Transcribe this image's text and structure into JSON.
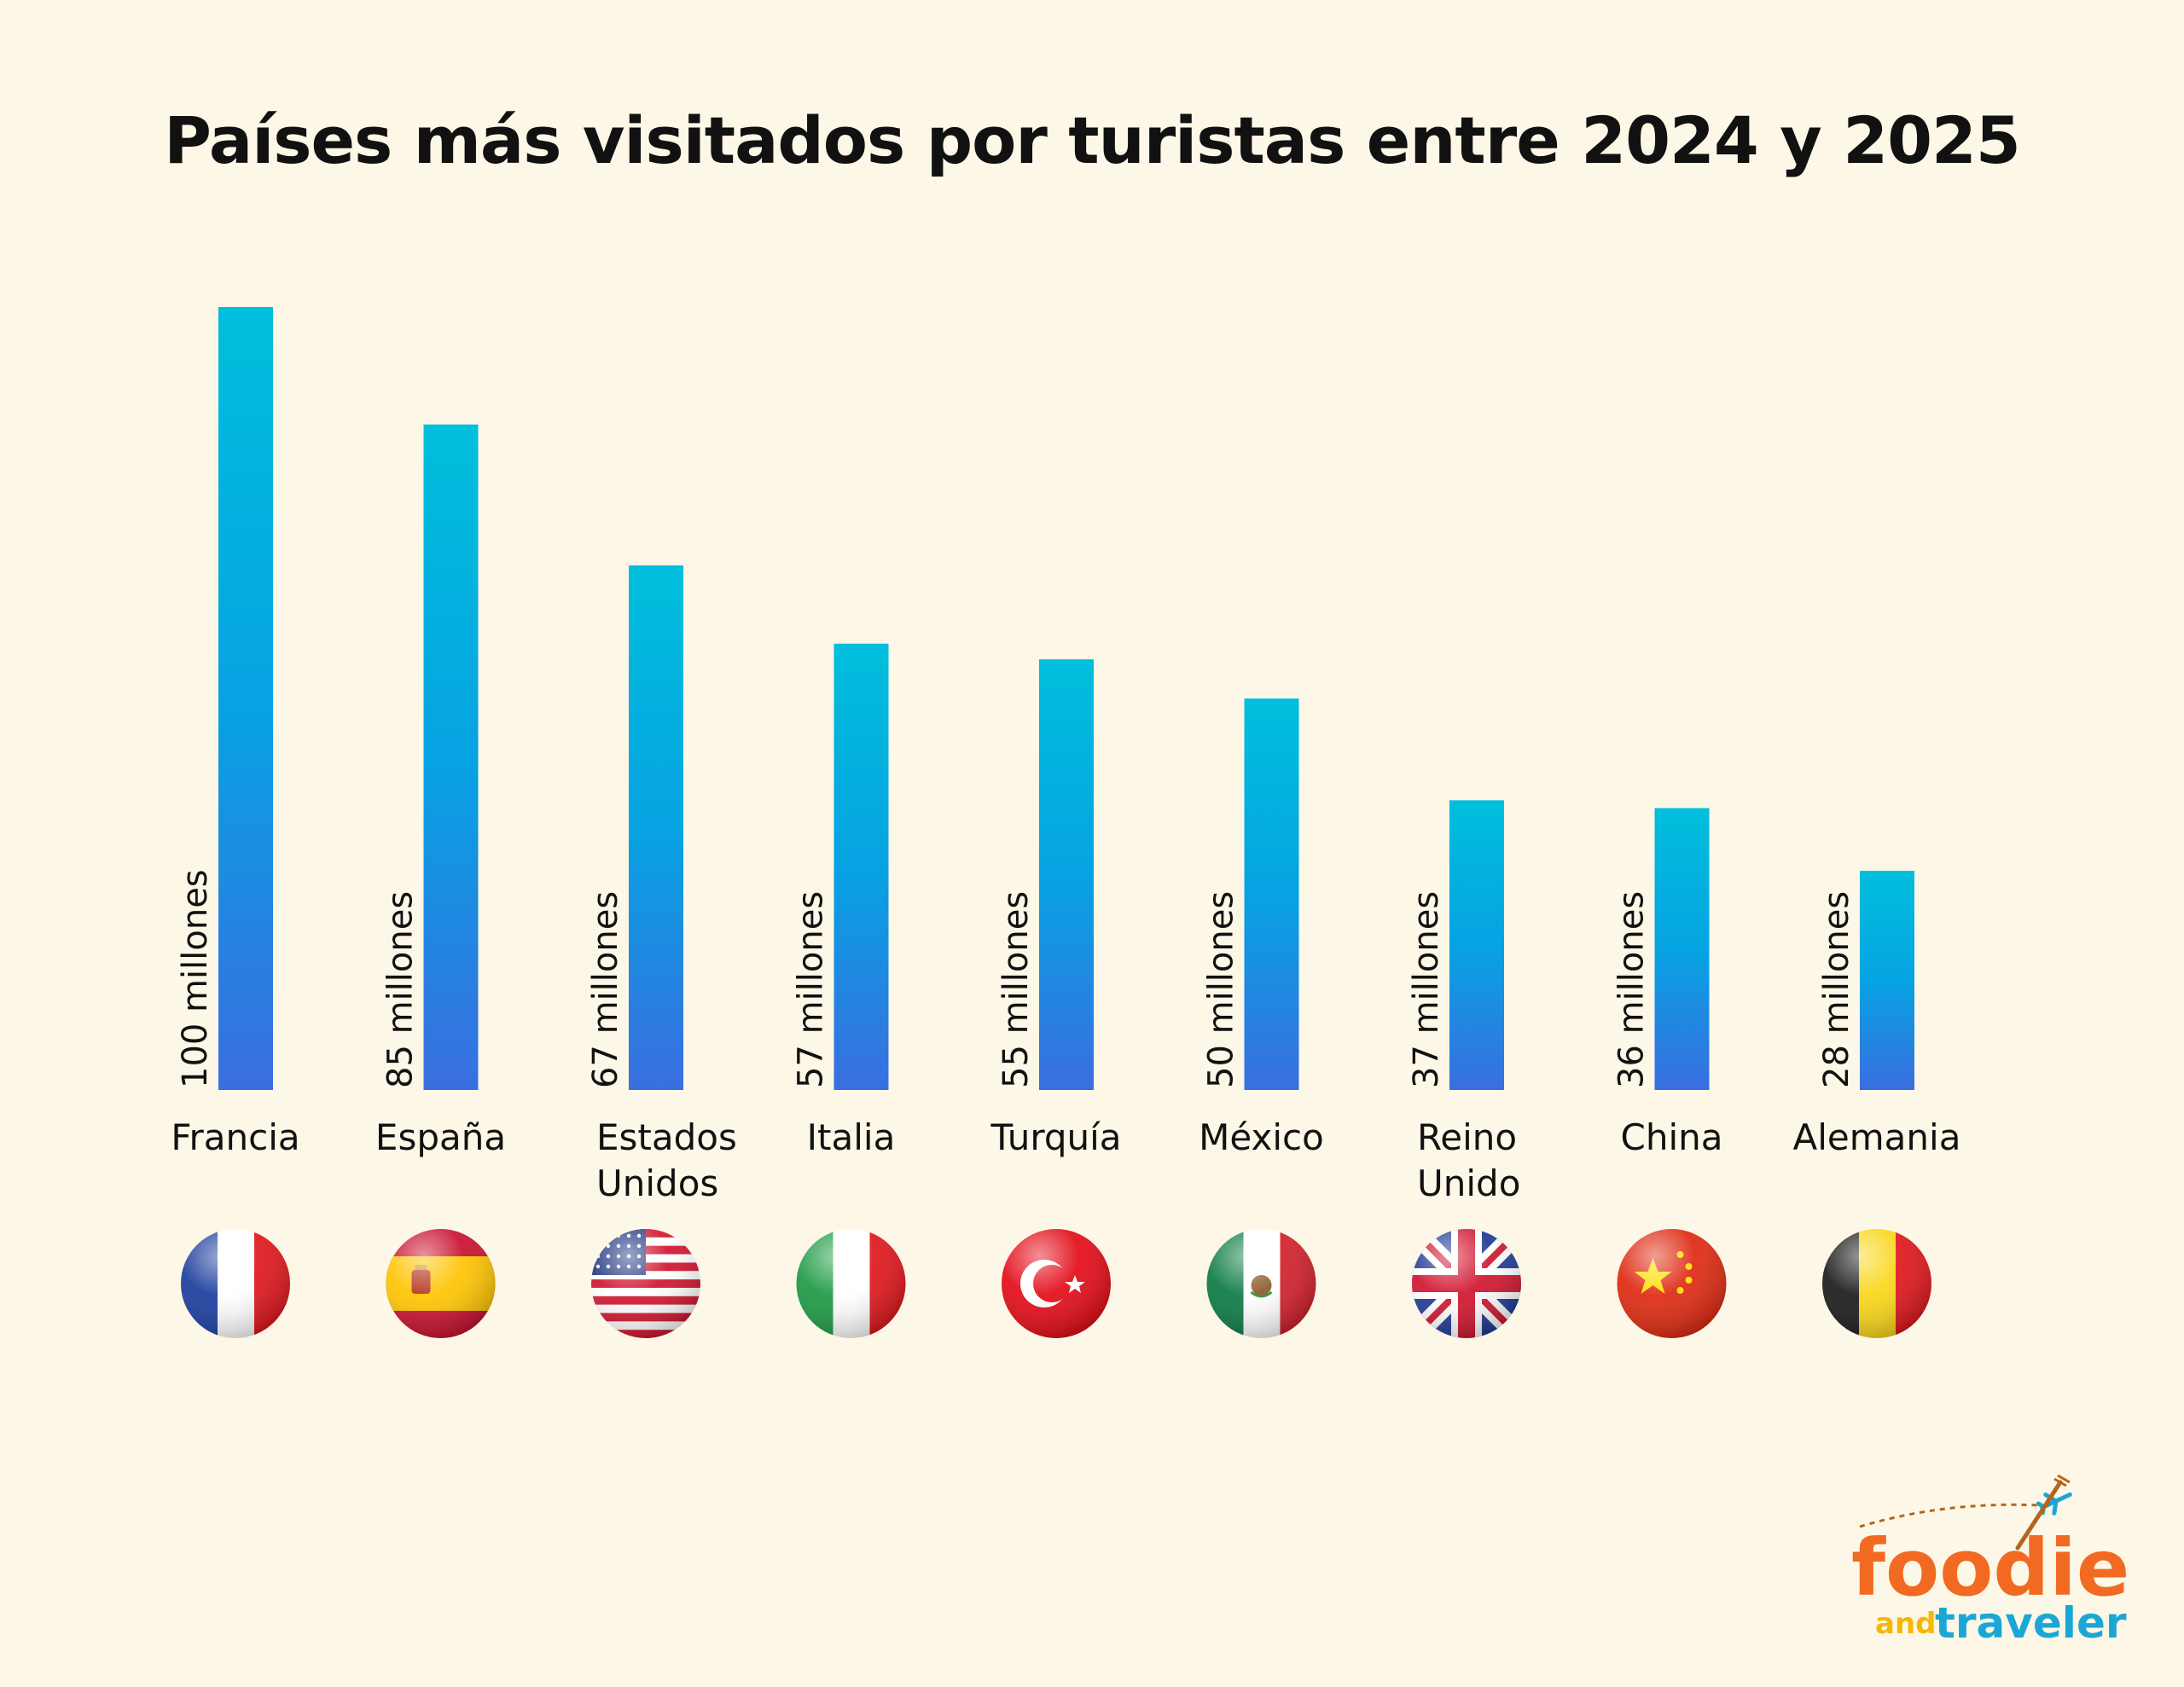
{
  "title": "Países más visitados por turistas entre 2024 y 2025",
  "chart_data": {
    "type": "bar",
    "title": "Países más visitados por turistas entre 2024 y 2025",
    "categories": [
      "Francia",
      "España",
      "Estados Unidos",
      "Italia",
      "Turquía",
      "México",
      "Reino Unido",
      "China",
      "Alemania"
    ],
    "category_lines": [
      [
        "Francia"
      ],
      [
        "España"
      ],
      [
        "Estados",
        "Unidos"
      ],
      [
        "Italia"
      ],
      [
        "Turquía"
      ],
      [
        "México"
      ],
      [
        "Reino",
        "Unido"
      ],
      [
        "China"
      ],
      [
        "Alemania"
      ]
    ],
    "values": [
      100,
      85,
      67,
      57,
      55,
      50,
      37,
      36,
      28
    ],
    "value_labels": [
      "100 millones",
      "85 millones",
      "67 millones",
      "57 millones",
      "55 millones",
      "50 millones",
      "37 millones",
      "36 millones",
      "28 millones"
    ],
    "unit": "millones",
    "ylim": [
      0,
      100
    ],
    "grid": false,
    "legend": "none",
    "colors": {
      "bar_top": "#00bfdc",
      "bar_mid": "#06a3e2",
      "bar_bottom": "#3a6ee0"
    },
    "flags": [
      "france-flag-icon",
      "spain-flag-icon",
      "usa-flag-icon",
      "italy-flag-icon",
      "turkey-flag-icon",
      "mexico-flag-icon",
      "uk-flag-icon",
      "china-flag-icon",
      "belgium-flag-icon"
    ]
  },
  "logo": {
    "word1": "foodie",
    "word2": "and",
    "word3": "traveler",
    "colors": {
      "orange": "#f26a21",
      "yellow": "#f5b800",
      "green": "#8cc63f",
      "red": "#e3262b",
      "blue": "#1ba7d6"
    }
  }
}
